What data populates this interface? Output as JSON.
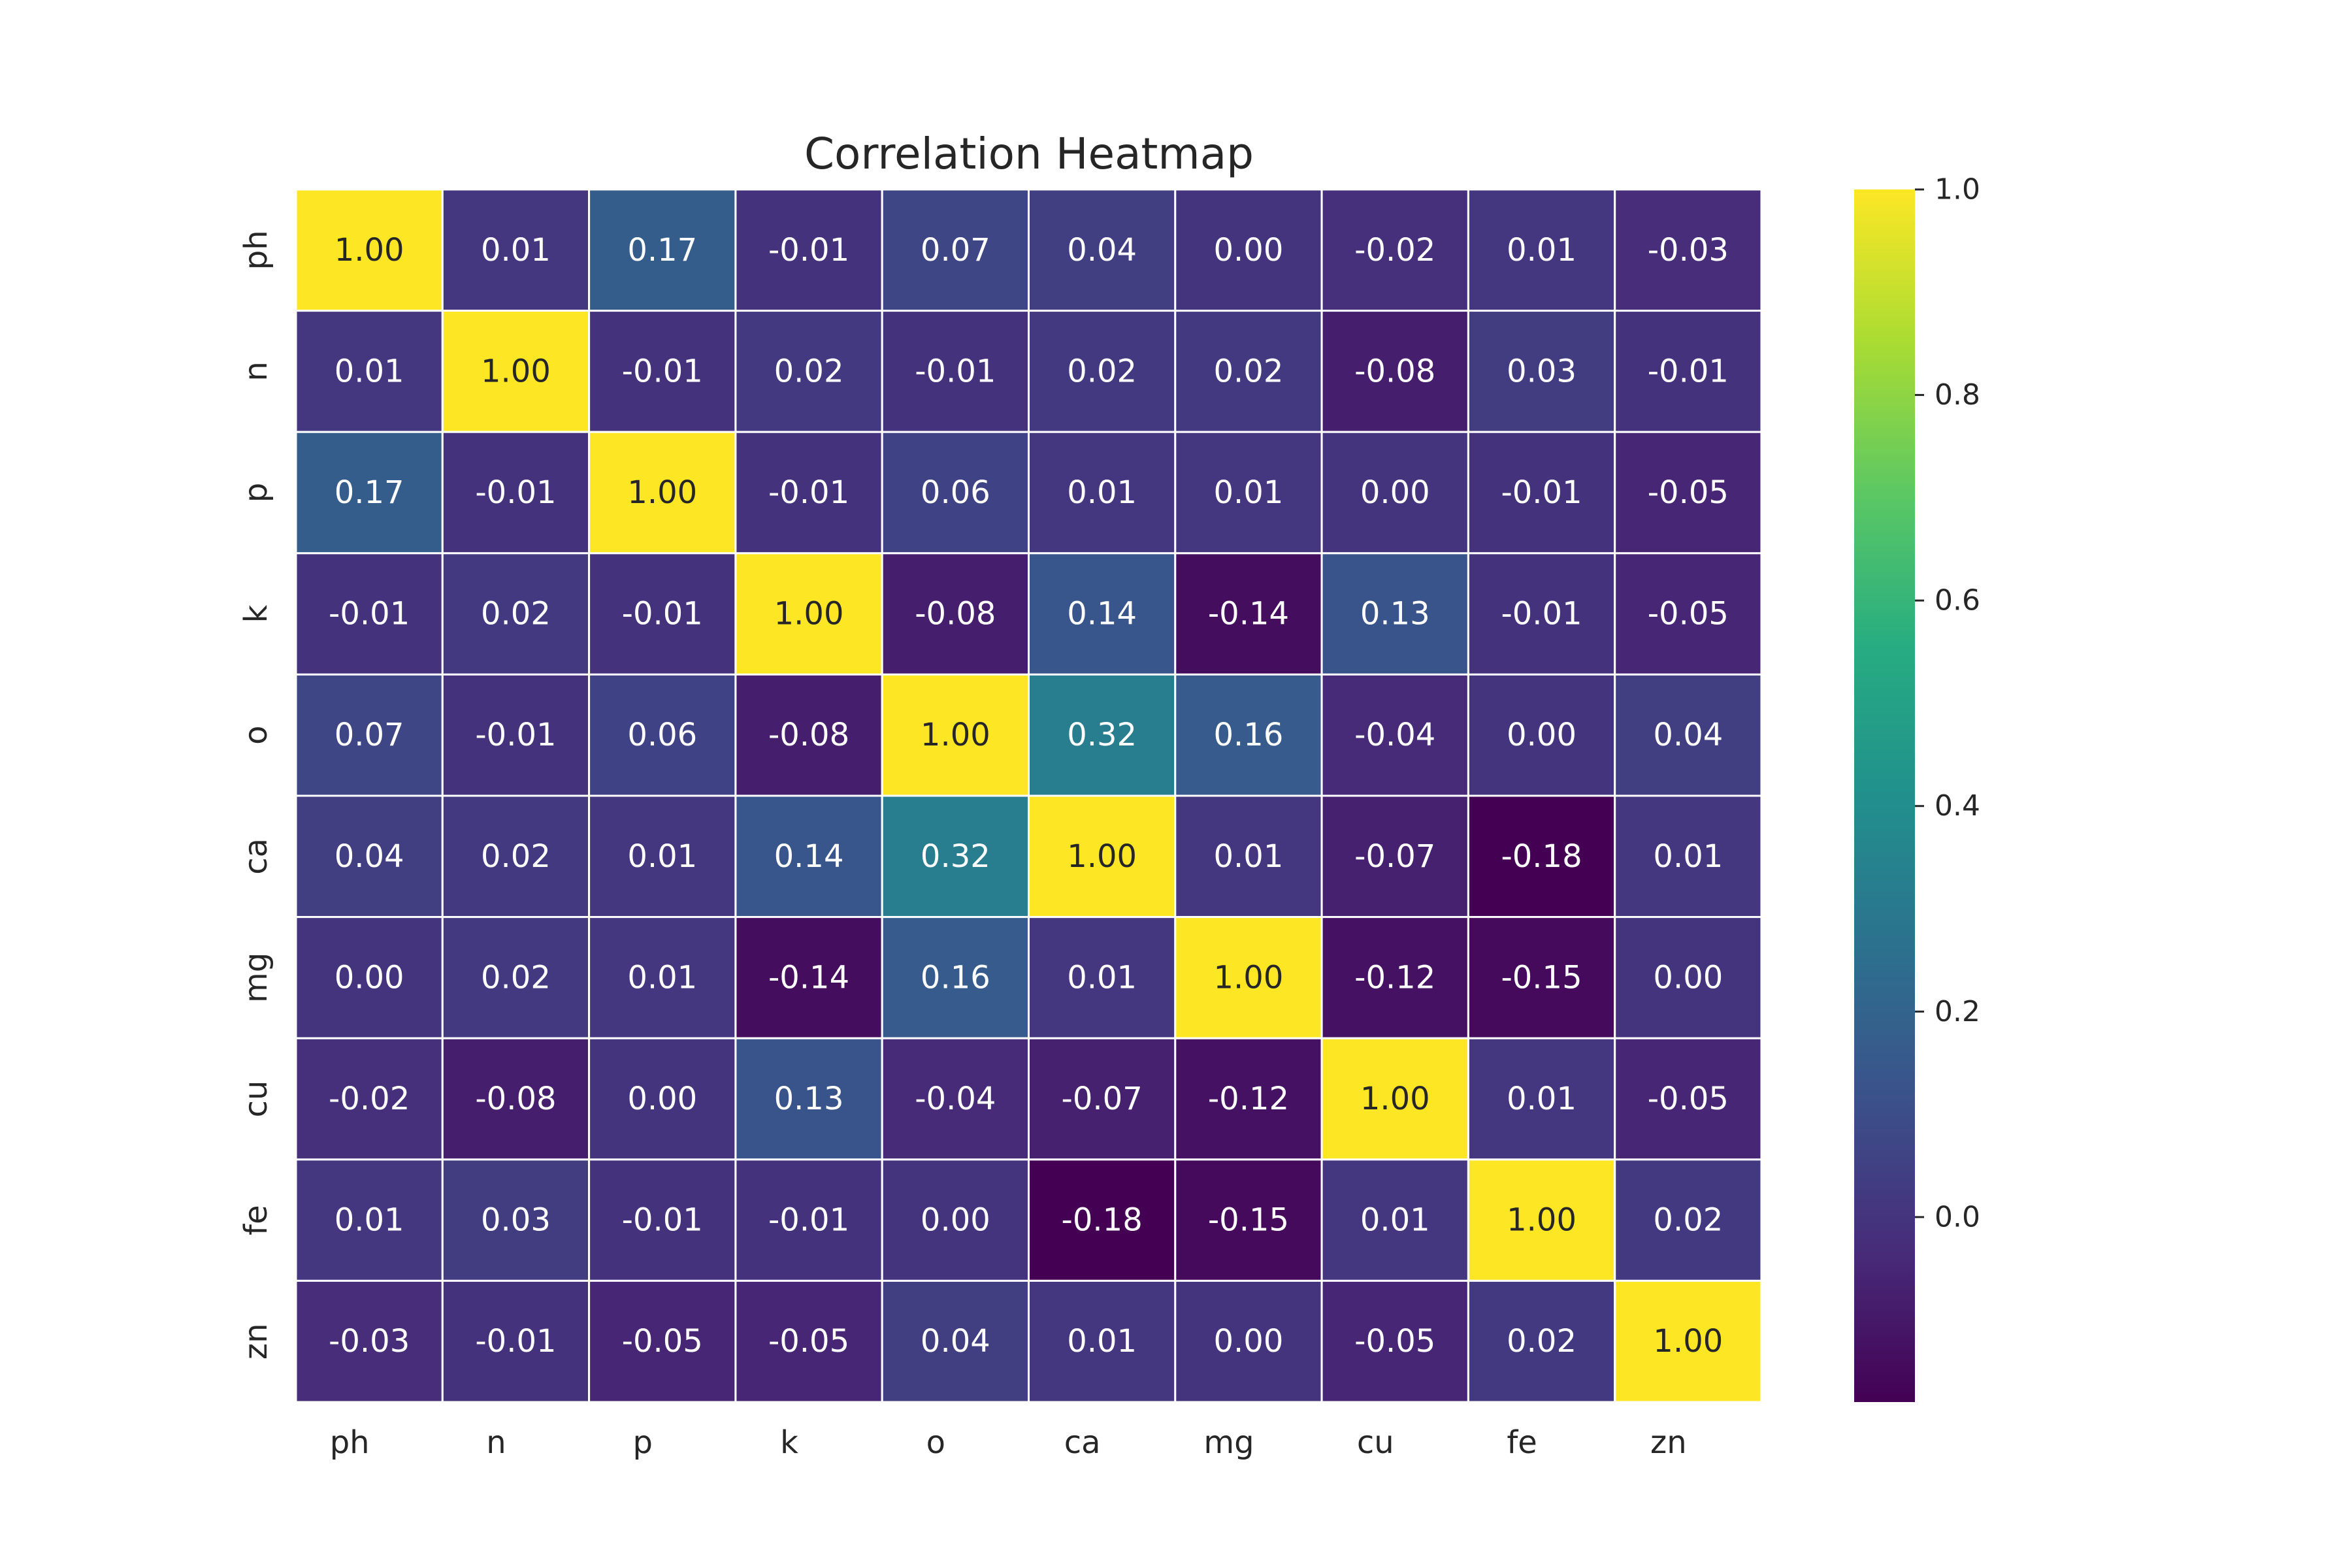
{
  "chart_data": {
    "type": "heatmap",
    "title": "Correlation Heatmap",
    "xlabel": "",
    "ylabel": "",
    "x_categories": [
      "ph",
      "n",
      "p",
      "k",
      "o",
      "ca",
      "mg",
      "cu",
      "fe",
      "zn"
    ],
    "y_categories": [
      "ph",
      "n",
      "p",
      "k",
      "o",
      "ca",
      "mg",
      "cu",
      "fe",
      "zn"
    ],
    "values": [
      [
        1.0,
        0.01,
        0.17,
        -0.01,
        0.07,
        0.04,
        0.0,
        -0.02,
        0.01,
        -0.03
      ],
      [
        0.01,
        1.0,
        -0.01,
        0.02,
        -0.01,
        0.02,
        0.02,
        -0.08,
        0.03,
        -0.01
      ],
      [
        0.17,
        -0.01,
        1.0,
        -0.01,
        0.06,
        0.01,
        0.01,
        -0.0,
        -0.01,
        -0.05
      ],
      [
        -0.01,
        0.02,
        -0.01,
        1.0,
        -0.08,
        0.14,
        -0.14,
        0.13,
        -0.01,
        -0.05
      ],
      [
        0.07,
        -0.01,
        0.06,
        -0.08,
        1.0,
        0.32,
        0.16,
        -0.04,
        -0.0,
        0.04
      ],
      [
        0.04,
        0.02,
        0.01,
        0.14,
        0.32,
        1.0,
        0.01,
        -0.07,
        -0.18,
        0.01
      ],
      [
        0.0,
        0.02,
        0.01,
        -0.14,
        0.16,
        0.01,
        1.0,
        -0.12,
        -0.15,
        -0.0
      ],
      [
        -0.02,
        -0.08,
        -0.0,
        0.13,
        -0.04,
        -0.07,
        -0.12,
        1.0,
        0.01,
        -0.05
      ],
      [
        0.01,
        0.03,
        -0.01,
        -0.01,
        -0.0,
        -0.18,
        -0.15,
        0.01,
        1.0,
        0.02
      ],
      [
        -0.03,
        -0.01,
        -0.05,
        -0.05,
        0.04,
        0.01,
        -0.0,
        -0.05,
        0.02,
        1.0
      ]
    ],
    "annotation_format": "0.00",
    "colormap": "viridis",
    "vmin": -0.18,
    "vmax": 1.0,
    "colorbar_ticks": [
      "0.0",
      "0.2",
      "0.4",
      "0.6",
      "0.8",
      "1.0"
    ],
    "cell_border_color": "#ffffff",
    "grid": false,
    "legend": "colorbar-right"
  }
}
